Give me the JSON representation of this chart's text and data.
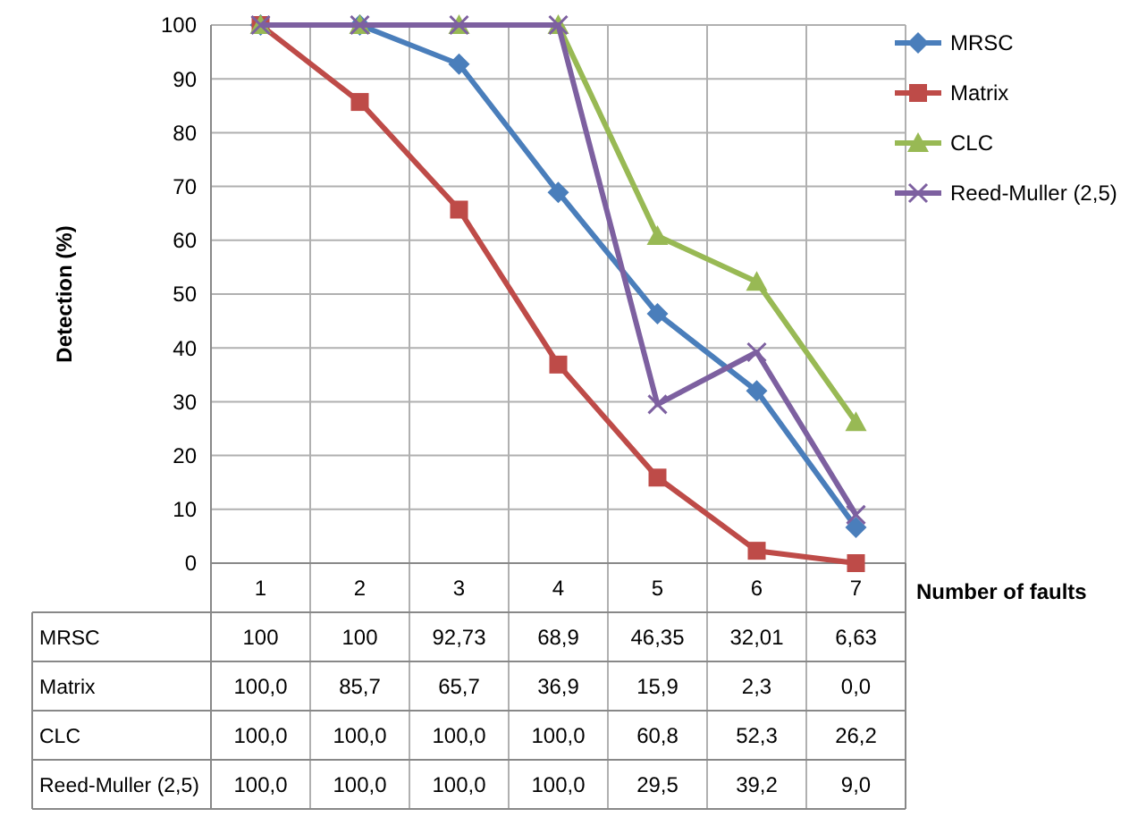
{
  "chart_data": {
    "type": "line",
    "ylabel": "Detection (%)",
    "xlabel": "Number of faults",
    "categories": [
      "1",
      "2",
      "3",
      "4",
      "5",
      "6",
      "7"
    ],
    "ylim": [
      0,
      100
    ],
    "yticks": [
      0,
      10,
      20,
      30,
      40,
      50,
      60,
      70,
      80,
      90,
      100
    ],
    "grid": true,
    "legend": "right",
    "series": [
      {
        "name": "MRSC",
        "color": "#4a7ebb",
        "marker": "diamond",
        "values": [
          100,
          100,
          92.73,
          68.9,
          46.35,
          32.01,
          6.63
        ],
        "value_labels": [
          "100",
          "100",
          "92,73",
          "68,9",
          "46,35",
          "32,01",
          "6,63"
        ]
      },
      {
        "name": "Matrix",
        "color": "#be4b48",
        "marker": "square",
        "values": [
          100,
          85.7,
          65.7,
          36.9,
          15.9,
          2.3,
          0
        ],
        "value_labels": [
          "100,0",
          "85,7",
          "65,7",
          "36,9",
          "15,9",
          "2,3",
          "0,0"
        ]
      },
      {
        "name": "CLC",
        "color": "#98b954",
        "marker": "triangle",
        "values": [
          100,
          100,
          100,
          100,
          60.8,
          52.3,
          26.2
        ],
        "value_labels": [
          "100,0",
          "100,0",
          "100,0",
          "100,0",
          "60,8",
          "52,3",
          "26,2"
        ]
      },
      {
        "name": "Reed-Muller (2,5)",
        "color": "#7d60a0",
        "marker": "cross",
        "values": [
          100,
          100,
          100,
          100,
          29.5,
          39.2,
          9.0
        ],
        "value_labels": [
          "100,0",
          "100,0",
          "100,0",
          "100,0",
          "29,5",
          "39,2",
          "9,0"
        ]
      }
    ]
  }
}
